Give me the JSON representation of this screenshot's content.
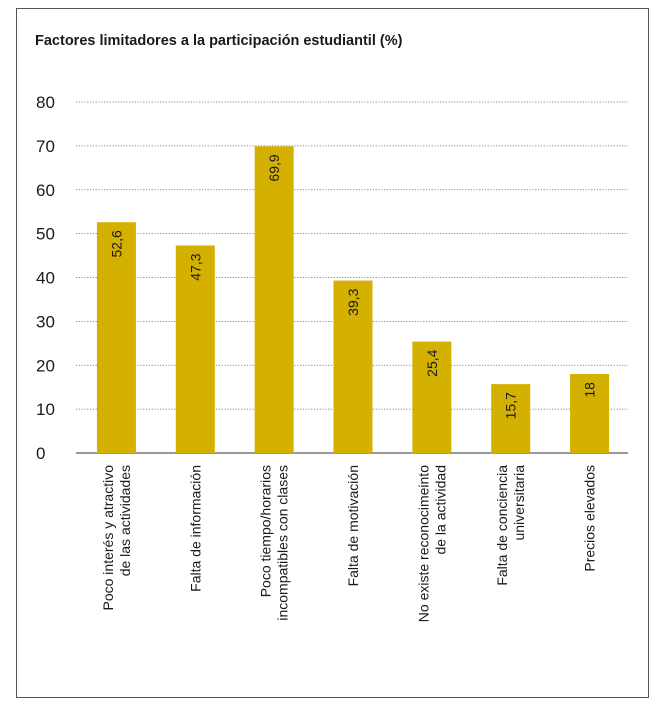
{
  "chart_data": {
    "type": "bar",
    "title": "Factores limitadores a la participación estudiantil (%)",
    "xlabel": "",
    "ylabel": "",
    "ylim": [
      0,
      80
    ],
    "yticks": [
      0,
      10,
      20,
      30,
      40,
      50,
      60,
      70,
      80
    ],
    "grid": true,
    "bar_color": "#d4b000",
    "categories": [
      [
        "Poco interés y atractivo",
        "de las actividades"
      ],
      [
        "Falta de información"
      ],
      [
        "Poco tiempo/horarios",
        "incompatibles con clases"
      ],
      [
        "Falta de motivación"
      ],
      [
        "No existe reconocimeinto",
        "de la actividad"
      ],
      [
        "Falta de conciencia",
        "universitaria"
      ],
      [
        "Precios elevados"
      ]
    ],
    "values": [
      52.6,
      47.3,
      69.9,
      39.3,
      25.4,
      15.7,
      18
    ],
    "value_labels": [
      "52,6",
      "47,3",
      "69,9",
      "39,3",
      "25,4",
      "15,7",
      "18"
    ]
  }
}
